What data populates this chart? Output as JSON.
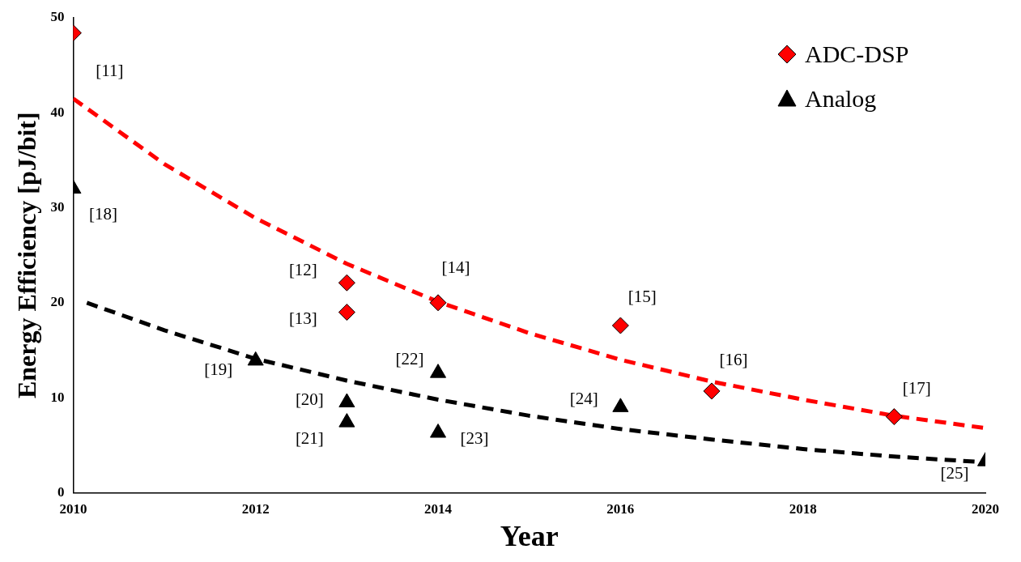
{
  "chart_data": {
    "type": "scatter",
    "xlabel": "Year",
    "ylabel": "Energy Efficiency [pJ/bit]",
    "xlim": [
      2010,
      2020
    ],
    "xticks": [
      2010,
      2012,
      2014,
      2016,
      2018,
      2020
    ],
    "ylim": [
      0,
      50
    ],
    "yticks": [
      0,
      10,
      20,
      30,
      40,
      50
    ],
    "grid": false,
    "legend": "top right",
    "series": [
      {
        "name": "ADC-DSP",
        "type": "scatter",
        "color": "#ff0000",
        "marker": "diamond",
        "x": [
          2010,
          2013,
          2013,
          2014,
          2016,
          2017,
          2019
        ],
        "values": [
          48.4,
          22.1,
          19.0,
          20.0,
          17.6,
          10.7,
          8.0
        ]
      },
      {
        "name": "Analog",
        "type": "scatter",
        "color": "#000000",
        "marker": "triangle",
        "x": [
          2010,
          2012,
          2013,
          2013,
          2014,
          2014,
          2016,
          2020
        ],
        "values": [
          32.0,
          13.9,
          9.5,
          7.4,
          12.6,
          6.3,
          9.0,
          3.3
        ]
      },
      {
        "type": "line",
        "color": "#ff0000",
        "marker": "none",
        "line_style": "dashed",
        "x": [
          2010,
          2011,
          2012,
          2013,
          2014,
          2015,
          2016,
          2017,
          2018,
          2019,
          2020
        ],
        "values": [
          41.5,
          34.6,
          28.9,
          24.1,
          20.1,
          16.8,
          14.0,
          11.7,
          9.8,
          8.1,
          6.8
        ]
      },
      {
        "type": "line",
        "color": "#000000",
        "marker": "none",
        "line_style": "dashed",
        "x": [
          2010.15,
          2011,
          2012,
          2013,
          2014,
          2015,
          2016,
          2017,
          2018,
          2019,
          2020
        ],
        "values": [
          20.0,
          17.1,
          14.1,
          11.8,
          9.8,
          8.1,
          6.7,
          5.6,
          4.6,
          3.8,
          3.2
        ]
      }
    ],
    "annotations": [
      {
        "text": "[11]",
        "x": 2010,
        "y": 48.4
      },
      {
        "text": "[12]",
        "x": 2013,
        "y": 22.1
      },
      {
        "text": "[13]",
        "x": 2013,
        "y": 19.0
      },
      {
        "text": "[14]",
        "x": 2014,
        "y": 20.0
      },
      {
        "text": "[15]",
        "x": 2016,
        "y": 17.6
      },
      {
        "text": "[16]",
        "x": 2017,
        "y": 10.7
      },
      {
        "text": "[17]",
        "x": 2019,
        "y": 8.0
      },
      {
        "text": "[18]",
        "x": 2010,
        "y": 32.0
      },
      {
        "text": "[19]",
        "x": 2012,
        "y": 13.9
      },
      {
        "text": "[20]",
        "x": 2013,
        "y": 9.5
      },
      {
        "text": "[21]",
        "x": 2013,
        "y": 7.4
      },
      {
        "text": "[22]",
        "x": 2014,
        "y": 12.6
      },
      {
        "text": "[23]",
        "x": 2014,
        "y": 6.3
      },
      {
        "text": "[24]",
        "x": 2016,
        "y": 9.0
      },
      {
        "text": "[25]",
        "x": 2020,
        "y": 3.3
      }
    ]
  }
}
